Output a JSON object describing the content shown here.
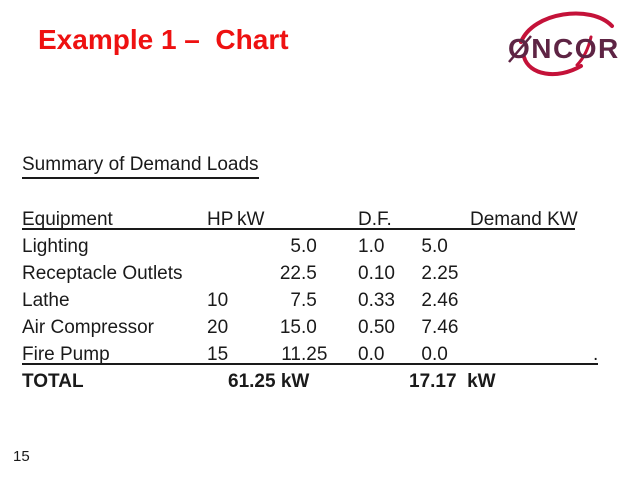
{
  "slide": {
    "title": "Example 1 –  Chart",
    "page_number": "15",
    "colors": {
      "title_red": "#ee1111",
      "body_text": "#1a1a1a",
      "logo_text": "#5e2444",
      "logo_swoosh": "#c41239"
    },
    "logo": {
      "text": "ONCOR"
    }
  },
  "table": {
    "heading": "Summary of Demand Loads",
    "columns": [
      "Equipment",
      "HP",
      "kW",
      "D.F.",
      "Demand KW"
    ],
    "rows": [
      {
        "equipment": "Lighting",
        "hp": "",
        "kw": "5.0",
        "df": "1.0",
        "demand": "5.0",
        "underlined": false
      },
      {
        "equipment": "Receptacle Outlets",
        "hp": "",
        "kw": "22.5",
        "df": "0.10",
        "demand": "2.25",
        "underlined": false
      },
      {
        "equipment": "Lathe",
        "hp": "10",
        "kw": "7.5",
        "df": "0.33",
        "demand": "2.46",
        "underlined": false
      },
      {
        "equipment": "Air Compressor",
        "hp": "20",
        "kw": "15.0",
        "df": "0.50",
        "demand": "7.46",
        "underlined": false
      },
      {
        "equipment": "Fire Pump",
        "hp": "15",
        "kw": "11.25",
        "df": "0.0",
        "demand": "0.0",
        "underlined": true
      }
    ],
    "end_dot": ".",
    "total": {
      "label": "TOTAL",
      "kw": "61.25 kW",
      "demand": "17.17  kW"
    }
  }
}
